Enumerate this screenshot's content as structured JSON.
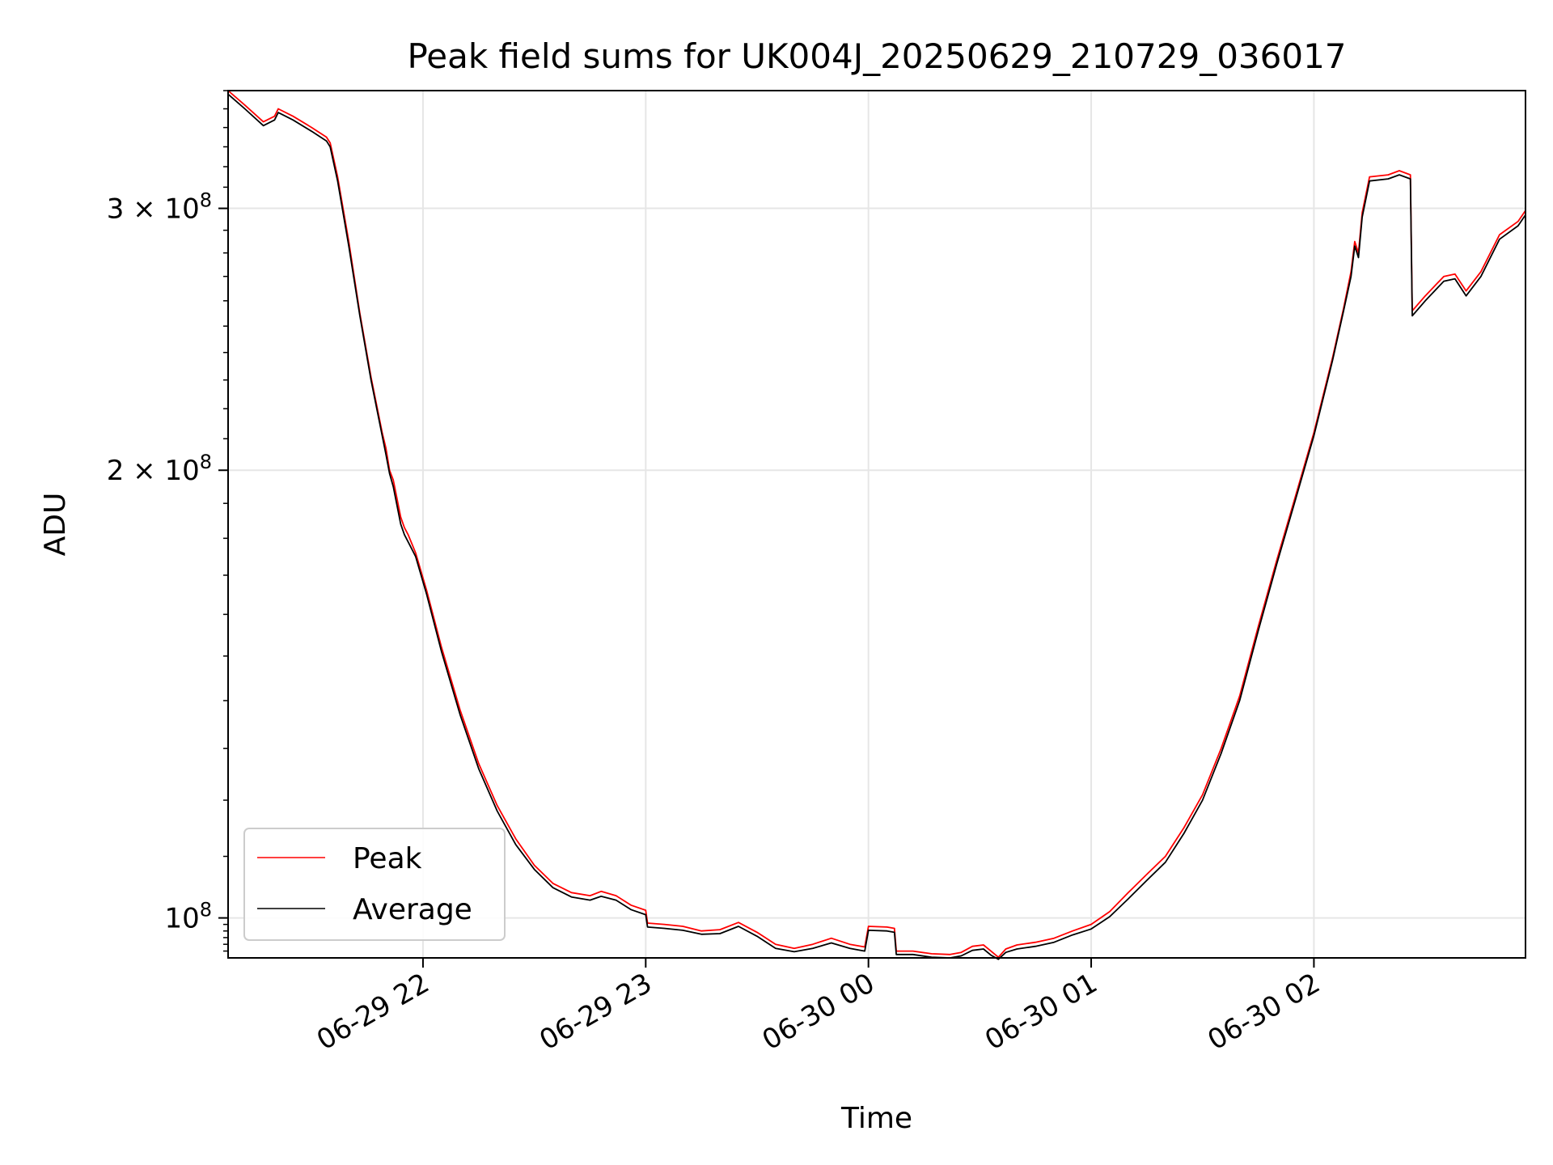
{
  "chart_data": {
    "type": "line",
    "title": "Peak field sums for UK004J_20250629_210729_036017",
    "xlabel": "Time",
    "ylabel": "ADU",
    "x_ticks": [
      "06-29 22",
      "06-29 23",
      "06-30 00",
      "06-30 01",
      "06-30 02"
    ],
    "y_scale": "log",
    "y_ticks": [
      {
        "value": 100000000,
        "mant": "",
        "exp": "8",
        "base": "10"
      },
      {
        "value": 200000000,
        "mant": "2",
        "times": "×",
        "exp": "8",
        "base": "10"
      },
      {
        "value": 300000000,
        "mant": "3",
        "times": "×",
        "exp": "8",
        "base": "10"
      }
    ],
    "xlim": [
      "2025-06-29 21:07:30",
      "2025-06-30 02:57:00"
    ],
    "ylim": [
      94000000,
      360000000
    ],
    "grid": true,
    "legend_position": "lower-left",
    "series": [
      {
        "name": "Peak",
        "color": "#ff0000",
        "points": [
          [
            "2025-06-29 21:07:30",
            360000000
          ],
          [
            "2025-06-29 21:12",
            352000000
          ],
          [
            "2025-06-29 21:17",
            343000000
          ],
          [
            "2025-06-29 21:20",
            346000000
          ],
          [
            "2025-06-29 21:21",
            350000000
          ],
          [
            "2025-06-29 21:25",
            346000000
          ],
          [
            "2025-06-29 21:30",
            340000000
          ],
          [
            "2025-06-29 21:34",
            335000000
          ],
          [
            "2025-06-29 21:35",
            332000000
          ],
          [
            "2025-06-29 21:37",
            315000000
          ],
          [
            "2025-06-29 21:40",
            285000000
          ],
          [
            "2025-06-29 21:43",
            255000000
          ],
          [
            "2025-06-29 21:46",
            231000000
          ],
          [
            "2025-06-29 21:49",
            212000000
          ],
          [
            "2025-06-29 21:50",
            207000000
          ],
          [
            "2025-06-29 21:51",
            200000000
          ],
          [
            "2025-06-29 21:52",
            197000000
          ],
          [
            "2025-06-29 21:54",
            186000000
          ],
          [
            "2025-06-29 21:55",
            183000000
          ],
          [
            "2025-06-29 21:56",
            181000000
          ],
          [
            "2025-06-29 21:58",
            176000000
          ],
          [
            "2025-06-29 22:01",
            166000000
          ],
          [
            "2025-06-29 22:05",
            152000000
          ],
          [
            "2025-06-29 22:10",
            138000000
          ],
          [
            "2025-06-29 22:15",
            127000000
          ],
          [
            "2025-06-29 22:20",
            119000000
          ],
          [
            "2025-06-29 22:25",
            113000000
          ],
          [
            "2025-06-29 22:30",
            108500000
          ],
          [
            "2025-06-29 22:35",
            105500000
          ],
          [
            "2025-06-29 22:40",
            104000000
          ],
          [
            "2025-06-29 22:45",
            103500000
          ],
          [
            "2025-06-29 22:48",
            104200000
          ],
          [
            "2025-06-29 22:52",
            103500000
          ],
          [
            "2025-06-29 22:56",
            102000000
          ],
          [
            "2025-06-29 23:00",
            101200000
          ],
          [
            "2025-06-29 23:00:30",
            99200000
          ],
          [
            "2025-06-29 23:05",
            99000000
          ],
          [
            "2025-06-29 23:10",
            98700000
          ],
          [
            "2025-06-29 23:15",
            98000000
          ],
          [
            "2025-06-29 23:20",
            98200000
          ],
          [
            "2025-06-29 23:25",
            99300000
          ],
          [
            "2025-06-29 23:30",
            97800000
          ],
          [
            "2025-06-29 23:35",
            96000000
          ],
          [
            "2025-06-29 23:40",
            95400000
          ],
          [
            "2025-06-29 23:45",
            96000000
          ],
          [
            "2025-06-29 23:50",
            96900000
          ],
          [
            "2025-06-29 23:55",
            96000000
          ],
          [
            "2025-06-29 23:59",
            95600000
          ],
          [
            "2025-06-30 00:00",
            98700000
          ],
          [
            "2025-06-30 00:05",
            98600000
          ],
          [
            "2025-06-30 00:07",
            98400000
          ],
          [
            "2025-06-30 00:07:30",
            95000000
          ],
          [
            "2025-06-30 00:12",
            95000000
          ],
          [
            "2025-06-30 00:17",
            94600000
          ],
          [
            "2025-06-30 00:22",
            94500000
          ],
          [
            "2025-06-30 00:25",
            94800000
          ],
          [
            "2025-06-30 00:28",
            95700000
          ],
          [
            "2025-06-30 00:31",
            95900000
          ],
          [
            "2025-06-30 00:33",
            95000000
          ],
          [
            "2025-06-30 00:35",
            94100000
          ],
          [
            "2025-06-30 00:37",
            95300000
          ],
          [
            "2025-06-30 00:40",
            95900000
          ],
          [
            "2025-06-30 00:45",
            96300000
          ],
          [
            "2025-06-30 00:50",
            96900000
          ],
          [
            "2025-06-30 00:55",
            98000000
          ],
          [
            "2025-06-30 01:00",
            99000000
          ],
          [
            "2025-06-30 01:05",
            101000000
          ],
          [
            "2025-06-30 01:10",
            104000000
          ],
          [
            "2025-06-30 01:15",
            107000000
          ],
          [
            "2025-06-30 01:20",
            110000000
          ],
          [
            "2025-06-30 01:25",
            115000000
          ],
          [
            "2025-06-30 01:30",
            121000000
          ],
          [
            "2025-06-30 01:35",
            130000000
          ],
          [
            "2025-06-30 01:40",
            141000000
          ],
          [
            "2025-06-30 01:45",
            157000000
          ],
          [
            "2025-06-30 01:50",
            174000000
          ],
          [
            "2025-06-30 01:55",
            192000000
          ],
          [
            "2025-06-30 02:00",
            212000000
          ],
          [
            "2025-06-30 02:05",
            238000000
          ],
          [
            "2025-06-30 02:08",
            257000000
          ],
          [
            "2025-06-30 02:10",
            272000000
          ],
          [
            "2025-06-30 02:11",
            285000000
          ],
          [
            "2025-06-30 02:12",
            280000000
          ],
          [
            "2025-06-30 02:13",
            298000000
          ],
          [
            "2025-06-30 02:15",
            315000000
          ],
          [
            "2025-06-30 02:20",
            316000000
          ],
          [
            "2025-06-30 02:23",
            318000000
          ],
          [
            "2025-06-30 02:26",
            316000000
          ],
          [
            "2025-06-30 02:26:30",
            256000000
          ],
          [
            "2025-06-30 02:30",
            262000000
          ],
          [
            "2025-06-30 02:35",
            270000000
          ],
          [
            "2025-06-30 02:38",
            271000000
          ],
          [
            "2025-06-30 02:41",
            264000000
          ],
          [
            "2025-06-30 02:45",
            272000000
          ],
          [
            "2025-06-30 02:50",
            288000000
          ],
          [
            "2025-06-30 02:55",
            294000000
          ],
          [
            "2025-06-30 02:57",
            299000000
          ]
        ]
      },
      {
        "name": "Average",
        "color": "#000000",
        "points": [
          [
            "2025-06-29 21:07:30",
            358000000
          ],
          [
            "2025-06-29 21:12",
            350000000
          ],
          [
            "2025-06-29 21:17",
            341000000
          ],
          [
            "2025-06-29 21:20",
            344000000
          ],
          [
            "2025-06-29 21:21",
            348000000
          ],
          [
            "2025-06-29 21:25",
            344000000
          ],
          [
            "2025-06-29 21:30",
            338000000
          ],
          [
            "2025-06-29 21:34",
            333000000
          ],
          [
            "2025-06-29 21:35",
            330000000
          ],
          [
            "2025-06-29 21:37",
            313000000
          ],
          [
            "2025-06-29 21:40",
            283000000
          ],
          [
            "2025-06-29 21:43",
            254000000
          ],
          [
            "2025-06-29 21:46",
            230000000
          ],
          [
            "2025-06-29 21:49",
            211000000
          ],
          [
            "2025-06-29 21:50",
            205000000
          ],
          [
            "2025-06-29 21:51",
            199000000
          ],
          [
            "2025-06-29 21:52",
            195000000
          ],
          [
            "2025-06-29 21:54",
            184000000
          ],
          [
            "2025-06-29 21:55",
            181000000
          ],
          [
            "2025-06-29 21:56",
            179000000
          ],
          [
            "2025-06-29 21:58",
            175000000
          ],
          [
            "2025-06-29 22:01",
            165000000
          ],
          [
            "2025-06-29 22:05",
            151000000
          ],
          [
            "2025-06-29 22:10",
            137000000
          ],
          [
            "2025-06-29 22:15",
            126000000
          ],
          [
            "2025-06-29 22:20",
            118000000
          ],
          [
            "2025-06-29 22:25",
            112000000
          ],
          [
            "2025-06-29 22:30",
            107800000
          ],
          [
            "2025-06-29 22:35",
            104800000
          ],
          [
            "2025-06-29 22:40",
            103300000
          ],
          [
            "2025-06-29 22:45",
            102800000
          ],
          [
            "2025-06-29 22:48",
            103400000
          ],
          [
            "2025-06-29 22:52",
            102800000
          ],
          [
            "2025-06-29 22:56",
            101300000
          ],
          [
            "2025-06-29 23:00",
            100500000
          ],
          [
            "2025-06-29 23:00:30",
            98600000
          ],
          [
            "2025-06-29 23:05",
            98400000
          ],
          [
            "2025-06-29 23:10",
            98100000
          ],
          [
            "2025-06-29 23:15",
            97500000
          ],
          [
            "2025-06-29 23:20",
            97600000
          ],
          [
            "2025-06-29 23:25",
            98700000
          ],
          [
            "2025-06-29 23:30",
            97200000
          ],
          [
            "2025-06-29 23:35",
            95400000
          ],
          [
            "2025-06-29 23:40",
            94900000
          ],
          [
            "2025-06-29 23:45",
            95400000
          ],
          [
            "2025-06-29 23:50",
            96200000
          ],
          [
            "2025-06-29 23:55",
            95400000
          ],
          [
            "2025-06-29 23:59",
            95000000
          ],
          [
            "2025-06-30 00:00",
            98100000
          ],
          [
            "2025-06-30 00:05",
            98000000
          ],
          [
            "2025-06-30 00:07",
            97800000
          ],
          [
            "2025-06-30 00:07:30",
            94500000
          ],
          [
            "2025-06-30 00:12",
            94500000
          ],
          [
            "2025-06-30 00:17",
            94100000
          ],
          [
            "2025-06-30 00:22",
            94000000
          ],
          [
            "2025-06-30 00:25",
            94300000
          ],
          [
            "2025-06-30 00:28",
            95100000
          ],
          [
            "2025-06-30 00:31",
            95300000
          ],
          [
            "2025-06-30 00:33",
            94400000
          ],
          [
            "2025-06-30 00:35",
            93800000
          ],
          [
            "2025-06-30 00:37",
            94800000
          ],
          [
            "2025-06-30 00:40",
            95300000
          ],
          [
            "2025-06-30 00:45",
            95700000
          ],
          [
            "2025-06-30 00:50",
            96300000
          ],
          [
            "2025-06-30 00:55",
            97400000
          ],
          [
            "2025-06-30 01:00",
            98300000
          ],
          [
            "2025-06-30 01:05",
            100200000
          ],
          [
            "2025-06-30 01:10",
            103000000
          ],
          [
            "2025-06-30 01:15",
            106000000
          ],
          [
            "2025-06-30 01:20",
            109000000
          ],
          [
            "2025-06-30 01:25",
            114000000
          ],
          [
            "2025-06-30 01:30",
            120000000
          ],
          [
            "2025-06-30 01:35",
            129000000
          ],
          [
            "2025-06-30 01:40",
            140000000
          ],
          [
            "2025-06-30 01:45",
            156000000
          ],
          [
            "2025-06-30 01:50",
            173000000
          ],
          [
            "2025-06-30 01:55",
            191000000
          ],
          [
            "2025-06-30 02:00",
            211000000
          ],
          [
            "2025-06-30 02:05",
            237000000
          ],
          [
            "2025-06-30 02:08",
            256000000
          ],
          [
            "2025-06-30 02:10",
            270000000
          ],
          [
            "2025-06-30 02:11",
            283000000
          ],
          [
            "2025-06-30 02:12",
            278000000
          ],
          [
            "2025-06-30 02:13",
            296000000
          ],
          [
            "2025-06-30 02:15",
            313000000
          ],
          [
            "2025-06-30 02:20",
            314000000
          ],
          [
            "2025-06-30 02:23",
            316000000
          ],
          [
            "2025-06-30 02:26",
            314000000
          ],
          [
            "2025-06-30 02:26:30",
            254000000
          ],
          [
            "2025-06-30 02:30",
            260000000
          ],
          [
            "2025-06-30 02:35",
            268000000
          ],
          [
            "2025-06-30 02:38",
            269000000
          ],
          [
            "2025-06-30 02:41",
            262000000
          ],
          [
            "2025-06-30 02:45",
            270000000
          ],
          [
            "2025-06-30 02:50",
            286000000
          ],
          [
            "2025-06-30 02:55",
            292000000
          ],
          [
            "2025-06-30 02:57",
            297000000
          ]
        ]
      }
    ]
  }
}
